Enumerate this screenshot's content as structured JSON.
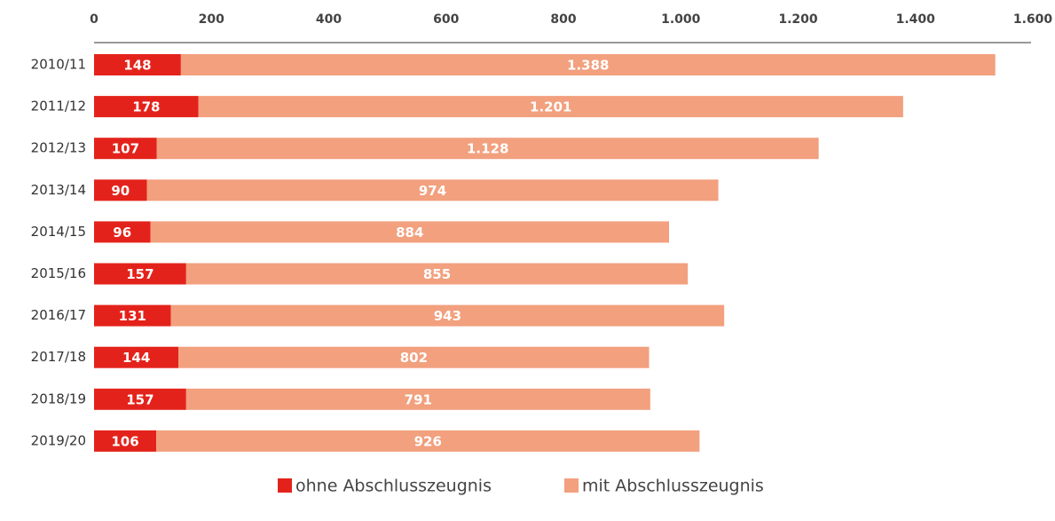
{
  "chart_data": {
    "type": "stacked_barh",
    "categories": [
      "2010/11",
      "2011/12",
      "2012/13",
      "2013/14",
      "2014/15",
      "2015/16",
      "2016/17",
      "2017/18",
      "2018/19",
      "2019/20"
    ],
    "series": [
      {
        "name": "ohne Abschlusszeugnis",
        "color": "#e3231b",
        "values": [
          148,
          178,
          107,
          90,
          96,
          157,
          131,
          144,
          157,
          106
        ]
      },
      {
        "name": "mit Abschlusszeugnis",
        "color": "#f2a07e",
        "values": [
          1388,
          1201,
          1128,
          974,
          884,
          855,
          943,
          802,
          791,
          926
        ],
        "value_labels": [
          "1.388",
          "1.201",
          "1.128",
          "974",
          "884",
          "855",
          "943",
          "802",
          "791",
          "926"
        ]
      }
    ],
    "xlim": [
      0,
      1600
    ],
    "xticks": [
      0,
      200,
      400,
      600,
      800,
      {
        "value": 1000,
        "label": "1.000"
      },
      {
        "value": 1200,
        "label": "1.200"
      },
      {
        "value": 1400,
        "label": "1.400"
      },
      {
        "value": 1600,
        "label": "1.600"
      }
    ],
    "grid": false,
    "legend": "bottom"
  }
}
